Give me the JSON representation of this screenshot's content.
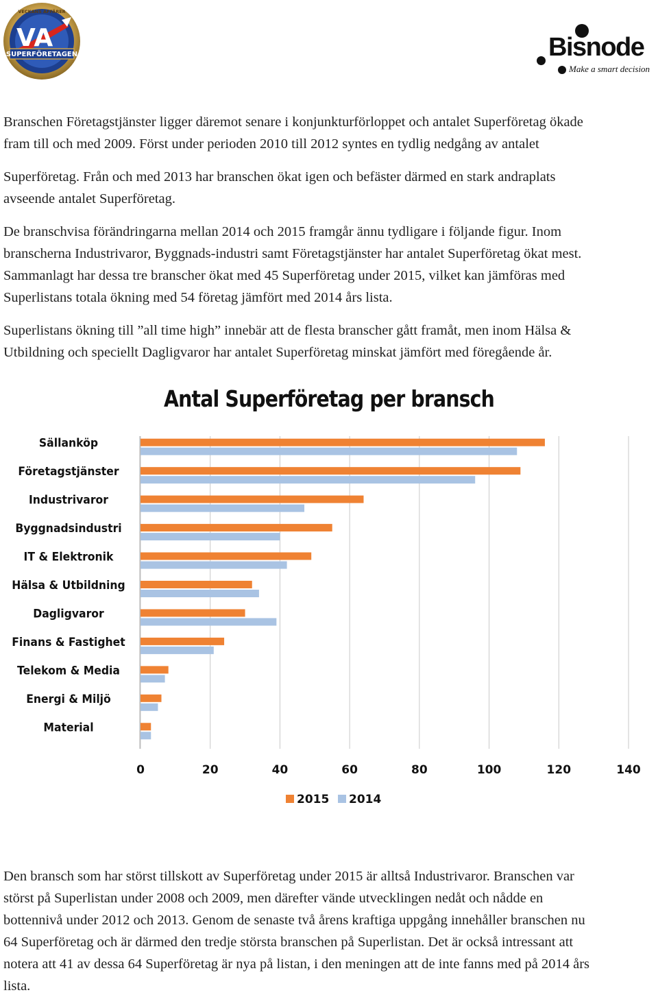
{
  "logos": {
    "va_text": "VA",
    "va_ring_top": "VECKANS AFFÄRER",
    "va_banner": "SUPERFÖRETAGEN",
    "bisnode_name": "Bisnode",
    "bisnode_tagline": "Make a smart decision"
  },
  "paragraphs": [
    {
      "lines": [
        "Branschen Företagstjänster ligger däremot senare i konjunkturförloppet och antalet Superföretag ökade",
        "fram till och med 2009. Först under perioden 2010 till 2012 syntes en tydlig nedgång av antalet"
      ]
    },
    {
      "lines": [
        "Superföretag. Från och med 2013 har branschen ökat igen och befäster därmed en stark andraplats",
        "avseende antalet Superföretag."
      ]
    },
    {
      "lines": [
        "De branschvisa förändringarna mellan 2014 och 2015 framgår ännu tydligare i följande figur. Inom",
        "branscherna Industrivaror, Byggnads-industri samt Företagstjänster har antalet Superföretag ökat mest.",
        "Sammanlagt har dessa tre branscher ökat med 45 Superföretag under 2015, vilket kan jämföras med",
        "Superlistans totala ökning med 54 företag jämfört med 2014 års lista."
      ]
    },
    {
      "lines": [
        "Superlistans ökning till ”all time high” innebär att de flesta branscher gått framåt, men inom Hälsa &",
        "Utbildning och speciellt Dagligvaror har antalet Superföretag minskat jämfört med föregående år."
      ]
    },
    {
      "lines": [
        "Den bransch som har störst tillskott av Superföretag under 2015 är alltså Industrivaror. Branschen var",
        "störst på Superlistan under 2008 och 2009, men därefter vände utvecklingen nedåt och nådde en",
        "bottennivå under 2012 och 2013. Genom de senaste två årens kraftiga uppgång innehåller branschen nu",
        "64 Superföretag och är därmed den tredje största branschen på Superlistan. Det är också intressant att",
        "notera att 41 av dessa 64 Superföretag är nya på listan, i den meningen att de inte fanns med på 2014 års",
        "lista."
      ]
    }
  ],
  "chart_data": {
    "type": "bar",
    "orientation": "horizontal",
    "title": "Antal Superföretag per bransch",
    "categories": [
      "Sällanköp",
      "Företagstjänster",
      "Industrivaror",
      "Byggnadsindustri",
      "IT & Elektronik",
      "Hälsa & Utbildning",
      "Dagligvaror",
      "Finans & Fastighet",
      "Telekom & Media",
      "Energi & Miljö",
      "Material"
    ],
    "series": [
      {
        "name": "2015",
        "color": "#ef8233",
        "values": [
          116,
          109,
          64,
          55,
          49,
          32,
          30,
          24,
          8,
          6,
          3
        ]
      },
      {
        "name": "2014",
        "color": "#a9c3e3",
        "values": [
          108,
          96,
          47,
          40,
          42,
          34,
          39,
          21,
          7,
          5,
          3
        ]
      }
    ],
    "xlim": [
      0,
      140
    ],
    "xticks": [
      "0",
      "20",
      "40",
      "60",
      "80",
      "100",
      "120",
      "140"
    ],
    "grid": true,
    "legend_position": "bottom-center"
  }
}
